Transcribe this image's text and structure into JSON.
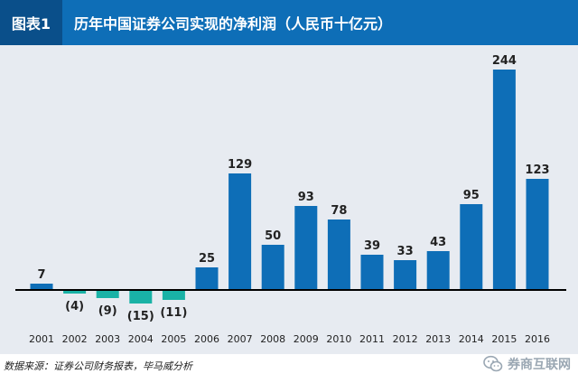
{
  "header": {
    "figure_tag": "图表1",
    "title": "历年中国证券公司实现的净利润（人民币十亿元）"
  },
  "source_note": "数据来源：证券公司财务报表，毕马威分析",
  "watermark": {
    "text": "券商互联网",
    "icon": "wechat-icon"
  },
  "colors": {
    "header_bg": "#0e6eb7",
    "tag_bg": "#0a4f8a",
    "plot_bg": "#e7ebf1",
    "positive_bar": "#0e6eb7",
    "negative_bar": "#19b2a6",
    "baseline": "#000000"
  },
  "chart_data": {
    "type": "bar",
    "title": "历年中国证券公司实现的净利润（人民币十亿元）",
    "xlabel": "",
    "ylabel": "",
    "categories": [
      "2001",
      "2002",
      "2003",
      "2004",
      "2005",
      "2006",
      "2007",
      "2008",
      "2009",
      "2010",
      "2011",
      "2012",
      "2013",
      "2014",
      "2015",
      "2016"
    ],
    "values": [
      7,
      -4,
      -9,
      -15,
      -11,
      25,
      129,
      50,
      93,
      78,
      39,
      33,
      43,
      95,
      244,
      123
    ],
    "data_labels": [
      "7",
      "(4)",
      "(9)",
      "(15)",
      "(11)",
      "25",
      "129",
      "50",
      "93",
      "78",
      "39",
      "33",
      "43",
      "95",
      "244",
      "123"
    ],
    "ylim": [
      -15,
      244
    ],
    "grid": false,
    "legend": "none"
  }
}
